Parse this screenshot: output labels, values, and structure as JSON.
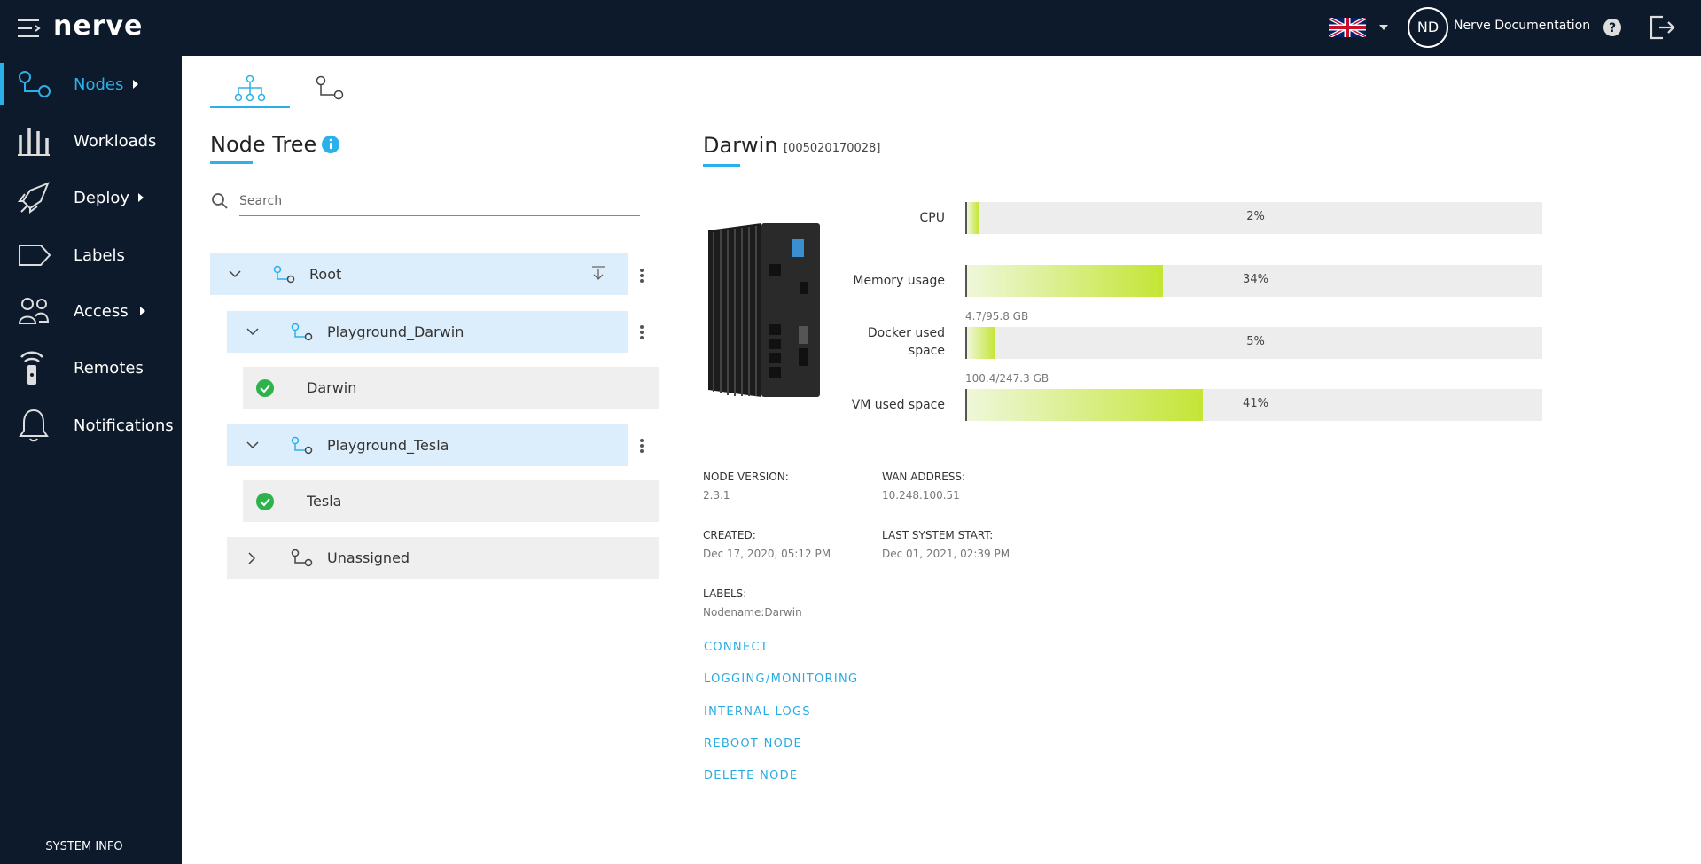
{
  "header": {
    "logo": "nerve",
    "user_initials": "ND",
    "user_name": "Nerve Documentation"
  },
  "sidebar": {
    "items": [
      "Nodes",
      "Workloads",
      "Deploy",
      "Labels",
      "Access",
      "Remotes",
      "Notifications"
    ],
    "footer": "SYSTEM INFO"
  },
  "node_tree": {
    "title": "Node Tree",
    "search_placeholder": "Search",
    "rows": [
      "Root",
      "Playground_Darwin",
      "Darwin",
      "Playground_Tesla",
      "Tesla",
      "Unassigned"
    ]
  },
  "node": {
    "name": "Darwin",
    "serial": "[005020170028]"
  },
  "metrics": [
    {
      "label": "CPU",
      "value": 2,
      "value_label": "2%"
    },
    {
      "label": "Memory usage",
      "value": 34,
      "value_label": "34%"
    },
    {
      "label": "Docker used space",
      "caption": "4.7/95.8 GB",
      "value": 5,
      "value_label": "5%"
    },
    {
      "label": "VM used space",
      "caption": "100.4/247.3 GB",
      "value": 41,
      "value_label": "41%"
    }
  ],
  "details": [
    {
      "label": "NODE VERSION:",
      "value": "2.3.1"
    },
    {
      "label": "WAN ADDRESS:",
      "value": "10.248.100.51"
    },
    {
      "label": "CREATED:",
      "value": "Dec 17, 2020, 05:12 PM"
    },
    {
      "label": "LAST SYSTEM START:",
      "value": "Dec 01, 2021, 02:39 PM"
    },
    {
      "label": "LABELS:",
      "value": "Nodename:Darwin"
    }
  ],
  "actions": [
    "CONNECT",
    "LOGGING/MONITORING",
    "INTERNAL LOGS",
    "REBOOT NODE",
    "DELETE NODE"
  ]
}
